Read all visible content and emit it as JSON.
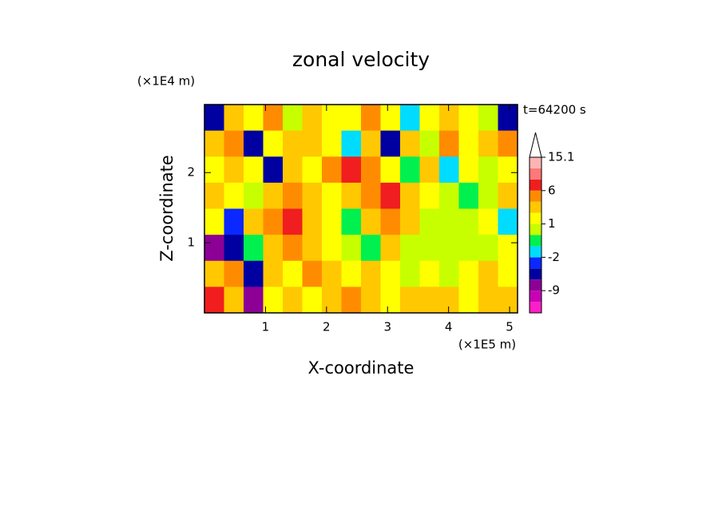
{
  "chart_data": {
    "type": "contour",
    "title": "zonal velocity",
    "x_label": "X-coordinate",
    "y_label": "Z-coordinate",
    "x_unit": "(×1E5 m)",
    "y_unit": "(×1E4 m)",
    "annotation": "t=64200 s",
    "xlim": [
      0,
      5.13
    ],
    "ylim": [
      0,
      2.97
    ],
    "xticks": [
      1,
      2,
      3,
      4,
      5
    ],
    "yticks": [
      1,
      2
    ],
    "z": [
      [
        -6,
        3,
        1,
        4,
        0,
        2,
        1,
        1,
        4,
        1,
        -2,
        1,
        3,
        1,
        0,
        -6
      ],
      [
        2,
        4,
        -6,
        1,
        3,
        2,
        1,
        -2,
        2,
        -6,
        3,
        0,
        4,
        1,
        2,
        4
      ],
      [
        1,
        2,
        1,
        -6,
        3,
        1,
        4,
        6,
        4,
        1,
        -1,
        2,
        -2,
        1,
        0,
        1
      ],
      [
        3,
        1,
        0,
        2,
        4,
        3,
        1,
        2,
        4,
        6,
        3,
        1,
        0,
        -1,
        0,
        2
      ],
      [
        1,
        -4,
        2,
        4,
        6,
        3,
        1,
        -1,
        2,
        4,
        3,
        0,
        0,
        0,
        1,
        -2
      ],
      [
        -9,
        -6,
        -1,
        3,
        4,
        2,
        1,
        0,
        -1,
        2,
        0,
        0,
        0,
        0,
        0,
        1
      ],
      [
        3,
        4,
        -6,
        2,
        1,
        4,
        3,
        1,
        2,
        1,
        0,
        1,
        0,
        1,
        2,
        1
      ],
      [
        6,
        2,
        -9,
        1,
        3,
        1,
        2,
        4,
        3,
        1,
        2,
        3,
        2,
        1,
        2,
        3
      ]
    ],
    "colorbar": {
      "levels": [
        -15,
        -12,
        -9,
        -6,
        -4,
        -2,
        -1,
        0,
        1,
        2,
        4,
        6,
        9,
        12,
        15.1
      ],
      "colors": [
        "#ff1ec8",
        "#c800b4",
        "#8c0096",
        "#0000a0",
        "#0a28ff",
        "#00dcff",
        "#00f050",
        "#c8ff00",
        "#ffff00",
        "#ffc800",
        "#ff8c00",
        "#f01e1e",
        "#ff7878",
        "#ffb4b4"
      ],
      "ticks": [
        15.1,
        6,
        1,
        -2,
        -9
      ]
    }
  }
}
